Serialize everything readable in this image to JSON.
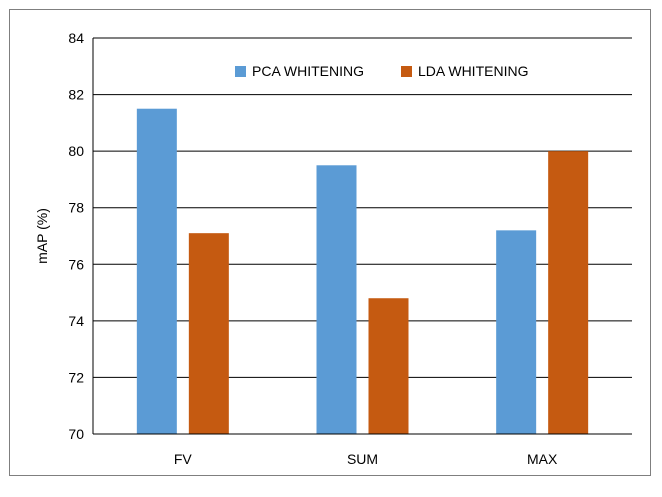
{
  "chart_data": {
    "type": "bar",
    "title": "",
    "xlabel": "",
    "ylabel": "mAP (%)",
    "ylim": [
      70,
      84
    ],
    "yticks": [
      70,
      72,
      74,
      76,
      78,
      80,
      82,
      84
    ],
    "grid": true,
    "legend_position": "top",
    "categories": [
      "FV",
      "SUM",
      "MAX"
    ],
    "series": [
      {
        "name": "PCA WHITENING",
        "color": "#5b9bd5",
        "values": [
          81.5,
          79.5,
          77.2
        ]
      },
      {
        "name": "LDA WHITENING",
        "color": "#c55a11",
        "values": [
          77.1,
          74.8,
          80.0
        ]
      }
    ]
  }
}
